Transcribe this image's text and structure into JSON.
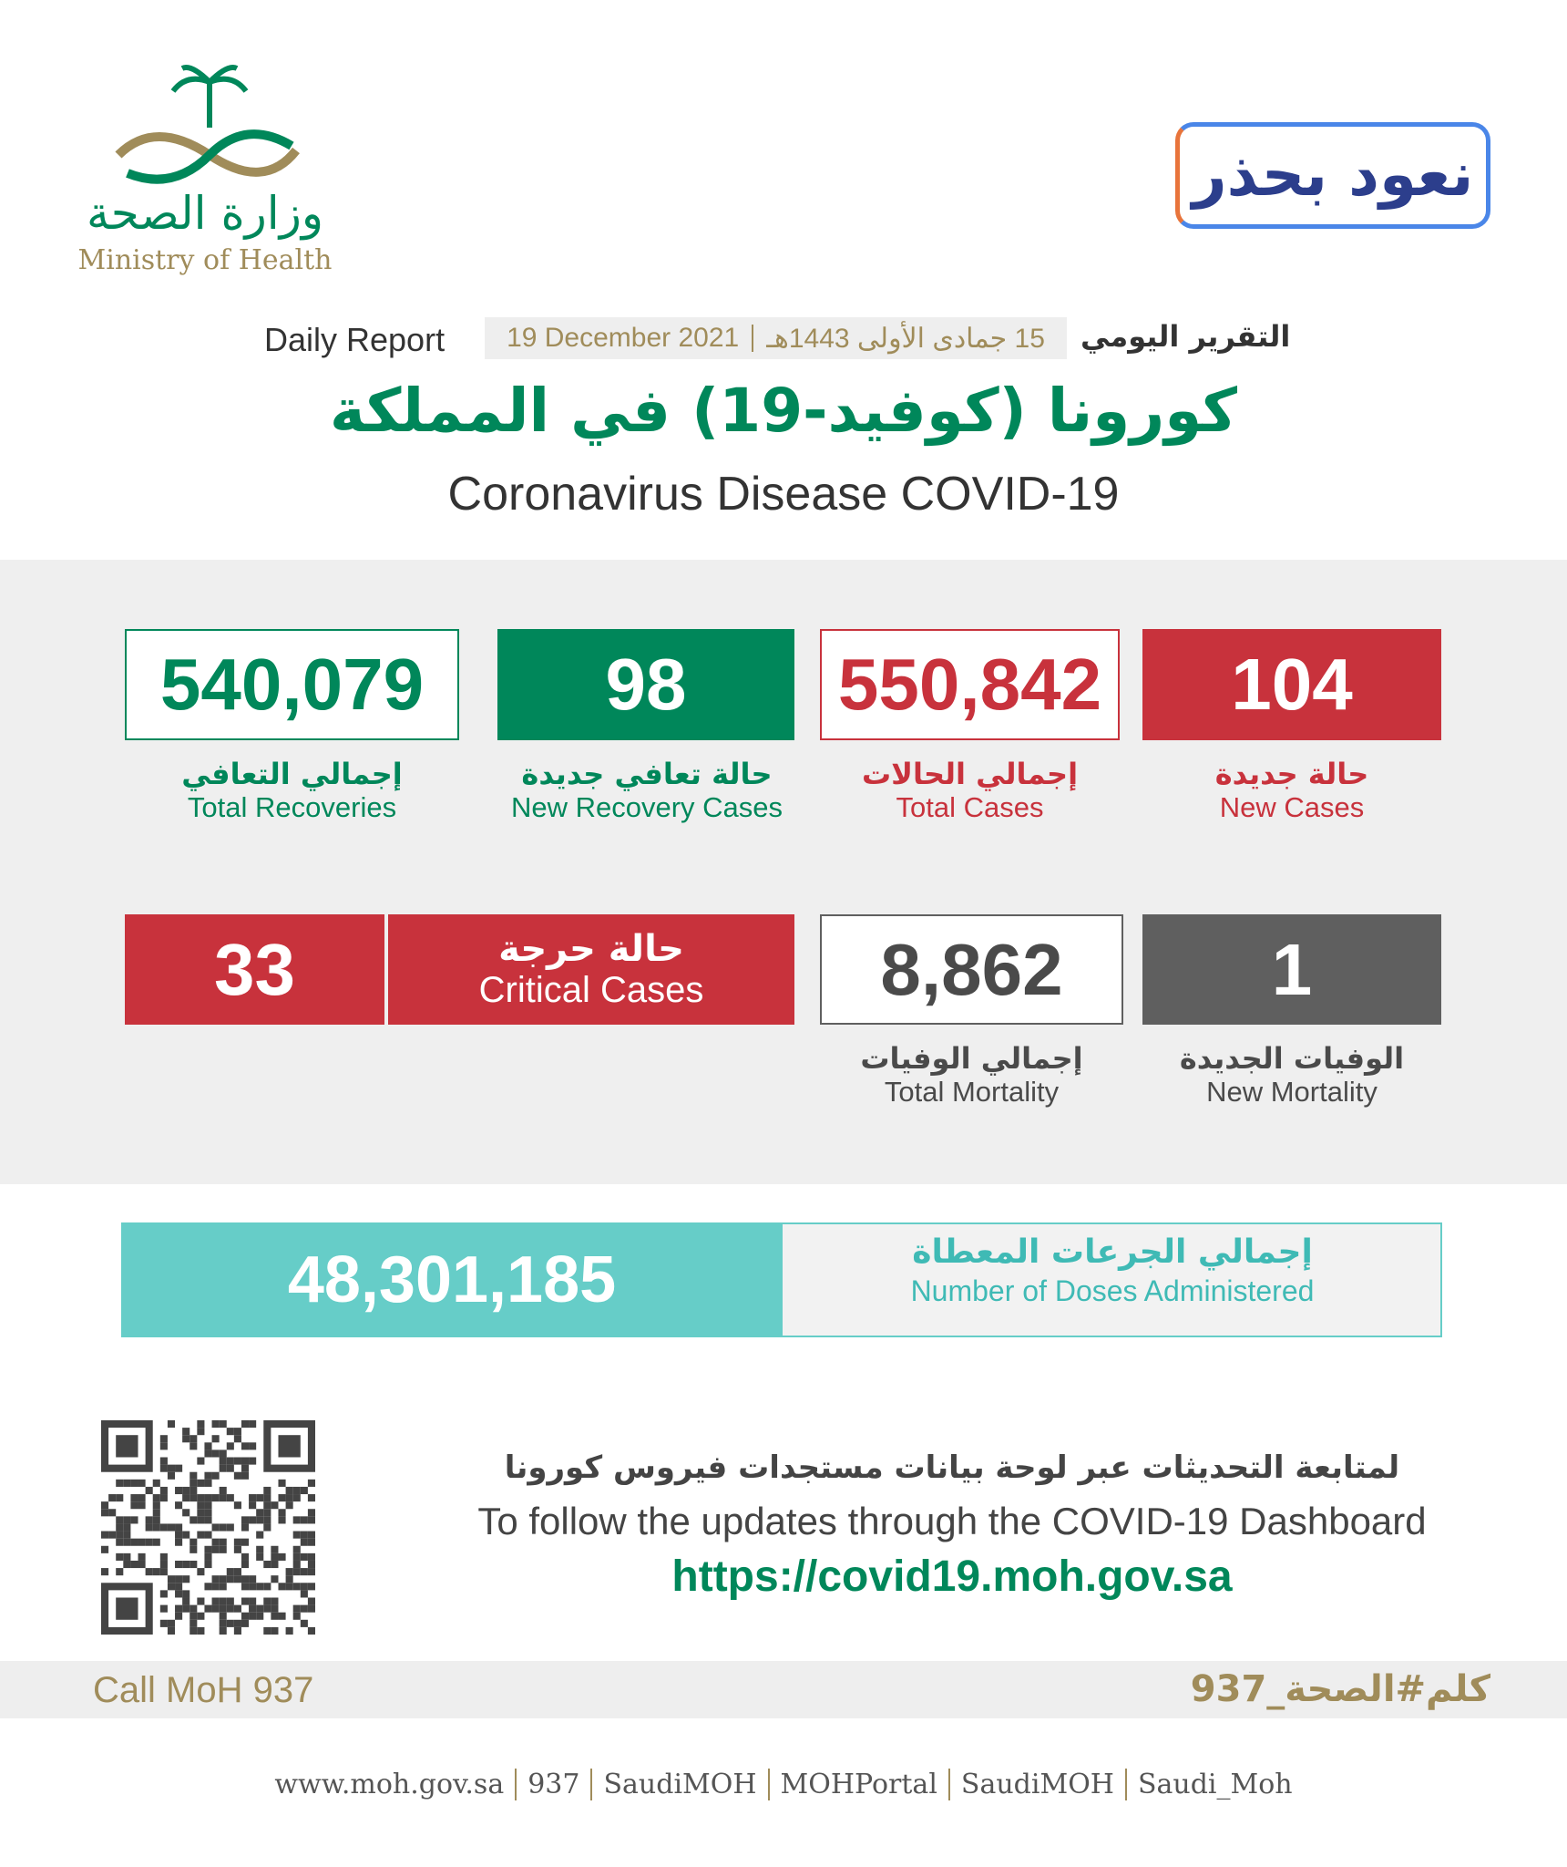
{
  "header": {
    "logo_ar": "وزارة الصحة",
    "logo_en": "Ministry of Health",
    "slogan_ar": "نعود بحذر",
    "daily_report_en": "Daily Report",
    "date_hijri": "15 جمادى الأولى 1443هـ",
    "date_gregorian": "19 December 2021",
    "daily_report_ar": "التقرير اليومي",
    "title_ar": "كورونا (كوفيد-19) في المملكة",
    "title_en": "Coronavirus Disease COVID-19"
  },
  "stats": [
    {
      "value": "540,079",
      "label_ar": "إجمالي التعافي",
      "label_en": "Total Recoveries"
    },
    {
      "value": "98",
      "label_ar": "حالة تعافي جديدة",
      "label_en": "New Recovery Cases"
    },
    {
      "value": "550,842",
      "label_ar": "إجمالي الحالات",
      "label_en": "Total Cases"
    },
    {
      "value": "104",
      "label_ar": "حالة جديدة",
      "label_en": "New Cases"
    },
    {
      "value": "8,862",
      "label_ar": "إجمالي الوفيات",
      "label_en": "Total Mortality"
    },
    {
      "value": "1",
      "label_ar": "الوفيات الجديدة",
      "label_en": "New Mortality"
    }
  ],
  "critical": {
    "value": "33",
    "label_ar": "حالة حرجة",
    "label_en": "Critical Cases"
  },
  "doses": {
    "value": "48,301,185",
    "label_ar": "إجمالي الجرعات المعطاة",
    "label_en": "Number of Doses Administered"
  },
  "follow": {
    "text_ar": "لمتابعة التحديثات عبر لوحة بيانات مستجدات فيروس كورونا",
    "text_en": "To follow the updates through the COVID-19 Dashboard",
    "url": "https://covid19.moh.gov.sa"
  },
  "bar": {
    "call": "Call MoH 937",
    "hashtag": "كلم#الصحة_937"
  },
  "footer_links": [
    "www.moh.gov.sa",
    "937",
    "SaudiMOH",
    "MOHPortal",
    "SaudiMOH",
    "Saudi_Moh"
  ]
}
